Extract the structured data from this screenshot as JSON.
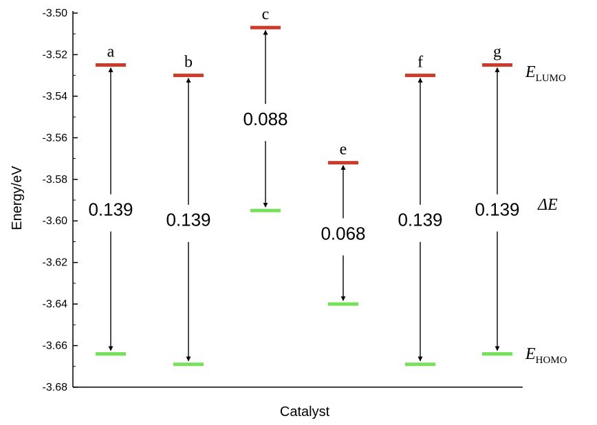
{
  "chart_data": {
    "type": "energy-level",
    "ylabel": "Energy/eV",
    "xlabel": "Catalyst",
    "ylim": [
      -3.68,
      -3.5
    ],
    "yticks": [
      -3.5,
      -3.52,
      -3.54,
      -3.56,
      -3.58,
      -3.6,
      -3.62,
      -3.64,
      -3.66,
      -3.68
    ],
    "ytick_labels": [
      "-3.50",
      "-3.52",
      "-3.54",
      "-3.56",
      "-3.58",
      "-3.60",
      "-3.62",
      "-3.64",
      "-3.66",
      "-3.68"
    ],
    "categories": [
      "a",
      "b",
      "c",
      "e",
      "f",
      "g"
    ],
    "series": [
      {
        "name": "E_LUMO",
        "values": [
          -3.525,
          -3.53,
          -3.507,
          -3.572,
          -3.53,
          -3.525
        ]
      },
      {
        "name": "E_HOMO",
        "values": [
          -3.664,
          -3.669,
          -3.595,
          -3.64,
          -3.669,
          -3.664
        ]
      }
    ],
    "gaps": [
      "0.139",
      "0.139",
      "0.088",
      "0.068",
      "0.139",
      "0.139"
    ],
    "gap_values": [
      0.139,
      0.139,
      0.088,
      0.068,
      0.139,
      0.139
    ],
    "annotations": {
      "lumo_label": {
        "main": "E",
        "sub": "LUMO"
      },
      "homo_label": {
        "main": "E",
        "sub": "HOMO"
      },
      "delta_label": "ΔE"
    },
    "colors": {
      "lumo": "#cc3a2a",
      "homo": "#77e05a",
      "axis": "#000000"
    }
  }
}
